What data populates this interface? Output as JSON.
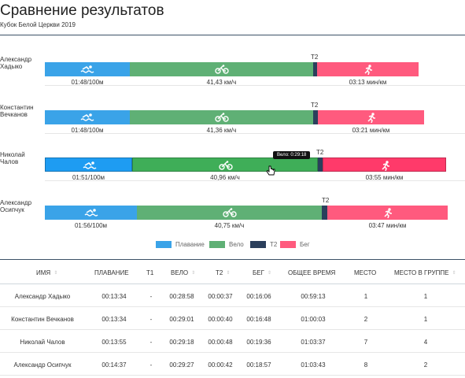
{
  "page": {
    "title": "Сравнение результатов",
    "subtitle": "Кубок Белой Церкви 2019"
  },
  "colors": {
    "swim": "#3aa3e8",
    "bike": "#5fb075",
    "t2": "#2b3f5c",
    "run": "#ff5a7e",
    "bike_hover": "#3fae58",
    "run_hover": "#ff3a6a",
    "swim_hover": "#1e9cf2"
  },
  "icons": {
    "swim": "swimmer-icon",
    "bike": "bicycle-icon",
    "run": "runner-icon",
    "sort": "sort-arrows-icon",
    "cursor": "hand-pointer-cursor-icon"
  },
  "chart": {
    "t2_label": "T2",
    "tooltip": "Вело: 0:29:18",
    "athletes": [
      {
        "name_line1": "Александр",
        "name_line2": "Хадыко",
        "swim_pace": "01:48/100м",
        "bike_speed": "41,43 км/ч",
        "run_pace": "03:13 мин/км"
      },
      {
        "name_line1": "Константин",
        "name_line2": "Вечканов",
        "swim_pace": "01:48/100м",
        "bike_speed": "41,36 км/ч",
        "run_pace": "03:21 мин/км"
      },
      {
        "name_line1": "Николай",
        "name_line2": "Чалов",
        "swim_pace": "01:51/100м",
        "bike_speed": "40,96 км/ч",
        "run_pace": "03:55 мин/км"
      },
      {
        "name_line1": "Александр",
        "name_line2": "Осипчук",
        "swim_pace": "01:56/100м",
        "bike_speed": "40,75 км/ч",
        "run_pace": "03:47 мин/км"
      }
    ],
    "legend": {
      "swim": "Плавание",
      "bike": "Вело",
      "t2": "T2",
      "run": "Бег"
    }
  },
  "table": {
    "headers": {
      "name": "Имя",
      "swim": "Плавание",
      "t1": "T1",
      "bike": "Вело",
      "t2": "T2",
      "run": "Бег",
      "total": "Общее время",
      "place": "Место",
      "group_place": "Место в группе"
    },
    "rows": [
      {
        "name": "Александр Хадыко",
        "swim": "00:13:34",
        "t1": "-",
        "bike": "00:28:58",
        "t2": "00:00:37",
        "run": "00:16:06",
        "total": "00:59:13",
        "place": "1",
        "group_place": "1"
      },
      {
        "name": "Константин Вечканов",
        "swim": "00:13:34",
        "t1": "-",
        "bike": "00:29:01",
        "t2": "00:00:40",
        "run": "00:16:48",
        "total": "01:00:03",
        "place": "2",
        "group_place": "1"
      },
      {
        "name": "Николай Чалов",
        "swim": "00:13:55",
        "t1": "-",
        "bike": "00:29:18",
        "t2": "00:00:48",
        "run": "00:19:36",
        "total": "01:03:37",
        "place": "7",
        "group_place": "4"
      },
      {
        "name": "Александр Осипчук",
        "swim": "00:14:37",
        "t1": "-",
        "bike": "00:29:27",
        "t2": "00:00:42",
        "run": "00:18:57",
        "total": "01:03:43",
        "place": "8",
        "group_place": "2"
      }
    ]
  }
}
